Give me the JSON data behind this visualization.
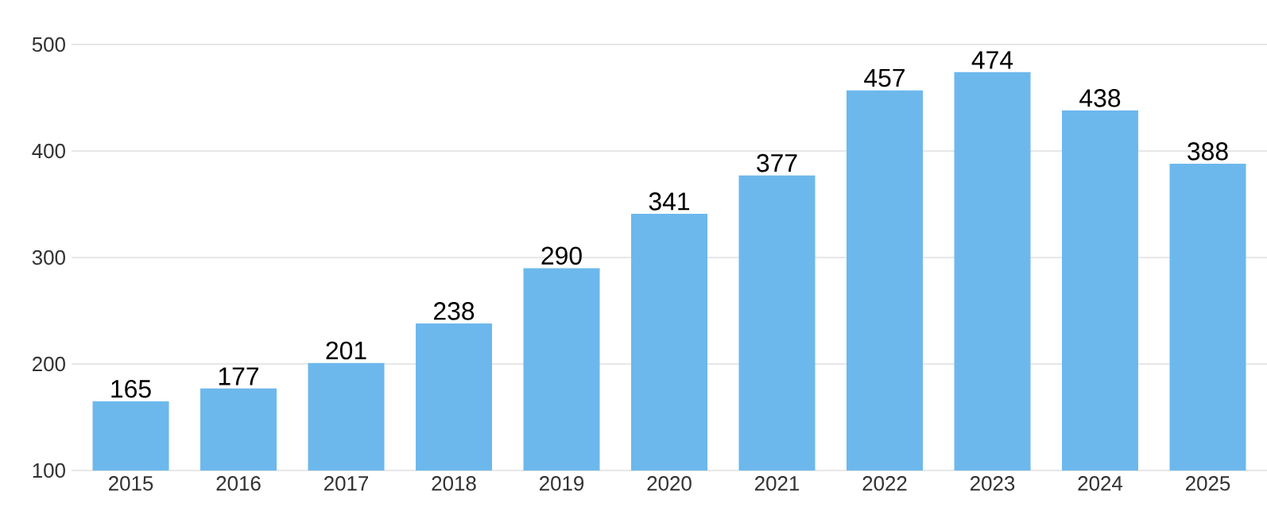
{
  "chart_data": {
    "type": "bar",
    "categories": [
      "2015",
      "2016",
      "2017",
      "2018",
      "2019",
      "2020",
      "2021",
      "2022",
      "2023",
      "2024",
      "2025"
    ],
    "values": [
      165,
      177,
      201,
      238,
      290,
      341,
      377,
      457,
      474,
      438,
      388
    ],
    "color": "#6cb8ec",
    "ylim": [
      100,
      500
    ],
    "yticks": [
      100,
      200,
      300,
      400,
      500
    ],
    "grid": "y",
    "data_labels": true
  }
}
